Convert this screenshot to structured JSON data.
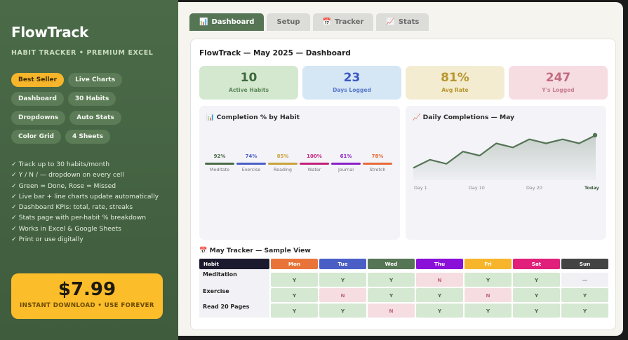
{
  "sidebar": {
    "brand": "FlowTrack",
    "tagline": "HABIT TRACKER • PREMIUM EXCEL",
    "pills": [
      "Best Seller",
      "Live Charts",
      "Dashboard",
      "30 Habits",
      "Dropdowns",
      "Auto Stats",
      "Color Grid",
      "4 Sheets"
    ],
    "features": [
      "✓ Track up to 30 habits/month",
      "✓ Y / N / — dropdown on every cell",
      "✓ Green = Done, Rose = Missed",
      "✓ Live bar + line charts update automatically",
      "✓ Dashboard KPIs: total, rate, streaks",
      "✓ Stats page with per-habit % breakdown",
      "✓ Works in Excel & Google Sheets",
      "✓ Print or use digitally"
    ],
    "price": "$7.99",
    "price_sub": "INSTANT DOWNLOAD • USE FOREVER"
  },
  "tabs": [
    {
      "label": "Dashboard",
      "icon": "📊",
      "active": true
    },
    {
      "label": "Setup",
      "icon": "",
      "active": false
    },
    {
      "label": "Tracker",
      "icon": "📅",
      "active": false
    },
    {
      "label": "Stats",
      "icon": "📈",
      "active": false
    }
  ],
  "panel_title": "FlowTrack — May 2025 — Dashboard",
  "kpis": [
    {
      "value": "10",
      "label": "Active Habits"
    },
    {
      "value": "23",
      "label": "Days Logged"
    },
    {
      "value": "81%",
      "label": "Avg Rate"
    },
    {
      "value": "247",
      "label": "Y's Logged"
    }
  ],
  "completion_chart": {
    "title": "📊 Completion % by Habit",
    "habits": [
      {
        "name": "Meditate",
        "pct": "92%",
        "color": "#4b6b48"
      },
      {
        "name": "Exercise",
        "pct": "74%",
        "color": "#4a5fc6"
      },
      {
        "name": "Reading",
        "pct": "85%",
        "color": "#c9a23a"
      },
      {
        "name": "Water",
        "pct": "100%",
        "color": "#c2207a"
      },
      {
        "name": "Journal",
        "pct": "61%",
        "color": "#8a20c8"
      },
      {
        "name": "Stretch",
        "pct": "78%",
        "color": "#e86a3a"
      }
    ]
  },
  "chart_data": {
    "type": "area",
    "title": "📈 Daily Completions — May",
    "x_labels": [
      "Day 1",
      "Day 10",
      "Day 20",
      "Today"
    ],
    "values": [
      3,
      5,
      4,
      7,
      6,
      9,
      8,
      10,
      9,
      10,
      9,
      11
    ],
    "ylim": [
      0,
      12
    ],
    "color": "#557555"
  },
  "tracker": {
    "title": "📅 May Tracker — Sample View",
    "habit_header": "Habit",
    "days": [
      {
        "label": "Mon",
        "color": "#e8743a"
      },
      {
        "label": "Tue",
        "color": "#4a5fc6"
      },
      {
        "label": "Wed",
        "color": "#557555"
      },
      {
        "label": "Thu",
        "color": "#8a0fd8"
      },
      {
        "label": "Fri",
        "color": "#f6b52b"
      },
      {
        "label": "Sat",
        "color": "#e0207a"
      },
      {
        "label": "Sun",
        "color": "#444444"
      }
    ],
    "rows": [
      {
        "habit": "Meditation",
        "cells": [
          "Y",
          "Y",
          "Y",
          "N",
          "Y",
          "Y",
          "—"
        ]
      },
      {
        "habit": "Exercise",
        "cells": [
          "Y",
          "N",
          "Y",
          "Y",
          "N",
          "Y",
          "Y"
        ]
      },
      {
        "habit": "Read 20 Pages",
        "cells": [
          "Y",
          "Y",
          "N",
          "Y",
          "Y",
          "Y",
          "Y"
        ]
      }
    ]
  }
}
